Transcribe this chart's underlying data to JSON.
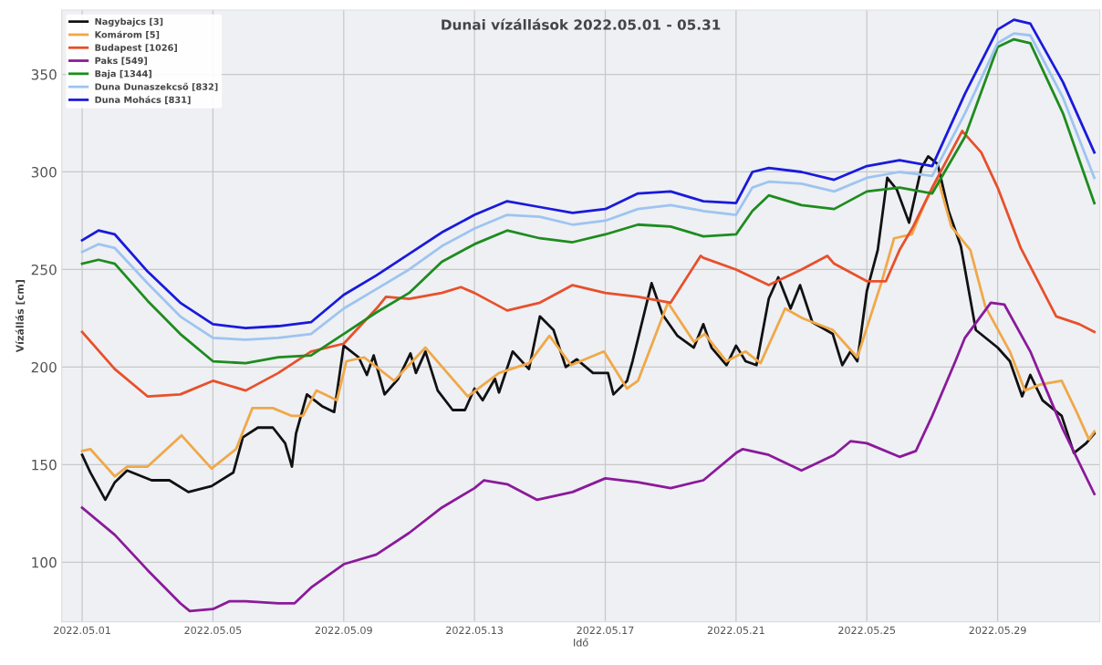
{
  "chart_data": {
    "type": "line",
    "title": "Dunai vízállások 2022.05.01 - 05.31",
    "xlabel": "Idő",
    "ylabel": "Vízállás [cm]",
    "xlim": [
      "2022-04-30T09:00",
      "2022-06-01T03:00"
    ],
    "xticks": [
      {
        "value": "2022-05-01",
        "label": "2022.05.01"
      },
      {
        "value": "2022-05-05",
        "label": "2022.05.05"
      },
      {
        "value": "2022-05-09",
        "label": "2022.05.09"
      },
      {
        "value": "2022-05-13",
        "label": "2022.05.13"
      },
      {
        "value": "2022-05-17",
        "label": "2022.05.17"
      },
      {
        "value": "2022-05-21",
        "label": "2022.05.21"
      },
      {
        "value": "2022-05-25",
        "label": "2022.05.25"
      },
      {
        "value": "2022-05-29",
        "label": "2022.05.29"
      }
    ],
    "ylim": [
      69.5,
      383
    ],
    "yticks": [
      100,
      150,
      200,
      250,
      300,
      350
    ],
    "grid": true,
    "legend": "top left",
    "marker": "none",
    "line_style": "solid",
    "series": [
      {
        "name": "Nagybajcs [3]",
        "color": "#111111",
        "x": [
          "2022-05-01T00:00",
          "2022-05-01T06:00",
          "2022-05-01T17:00",
          "2022-05-02T00:00",
          "2022-05-02T09:00",
          "2022-05-03T03:00",
          "2022-05-03T16:00",
          "2022-05-04T06:00",
          "2022-05-04T23:00",
          "2022-05-05T15:00",
          "2022-05-05T22:00",
          "2022-05-06T09:00",
          "2022-05-06T20:00",
          "2022-05-07T05:00",
          "2022-05-07T10:00",
          "2022-05-07T13:00",
          "2022-05-07T21:00",
          "2022-05-08T08:00",
          "2022-05-08T17:00",
          "2022-05-09T00:00",
          "2022-05-09T11:00",
          "2022-05-09T17:00",
          "2022-05-09T22:00",
          "2022-05-10T06:00",
          "2022-05-10T16:00",
          "2022-05-11T01:00",
          "2022-05-11T05:00",
          "2022-05-11T12:00",
          "2022-05-11T21:00",
          "2022-05-12T08:00",
          "2022-05-12T17:00",
          "2022-05-13T00:00",
          "2022-05-13T06:00",
          "2022-05-13T15:00",
          "2022-05-13T18:00",
          "2022-05-14T04:00",
          "2022-05-14T16:00",
          "2022-05-15T00:00",
          "2022-05-15T10:00",
          "2022-05-15T19:00",
          "2022-05-16T03:00",
          "2022-05-16T15:00",
          "2022-05-17T02:00",
          "2022-05-17T06:00",
          "2022-05-17T16:00",
          "2022-05-17T20:00",
          "2022-05-18T10:00",
          "2022-05-18T18:00",
          "2022-05-19T05:00",
          "2022-05-19T17:00",
          "2022-05-20T00:00",
          "2022-05-20T06:00",
          "2022-05-20T17:00",
          "2022-05-21T00:00",
          "2022-05-21T07:00",
          "2022-05-21T15:00",
          "2022-05-22T00:00",
          "2022-05-22T07:00",
          "2022-05-22T16:00",
          "2022-05-22T23:00",
          "2022-05-23T08:00",
          "2022-05-23T23:00",
          "2022-05-24T06:00",
          "2022-05-24T12:00",
          "2022-05-24T17:00",
          "2022-05-25T00:00",
          "2022-05-25T08:00",
          "2022-05-25T15:00",
          "2022-05-25T22:00",
          "2022-05-26T07:00",
          "2022-05-26T16:00",
          "2022-05-26T21:00",
          "2022-05-27T04:00",
          "2022-05-27T12:00",
          "2022-05-27T21:00",
          "2022-05-28T08:00",
          "2022-05-29T00:00",
          "2022-05-29T09:00",
          "2022-05-29T18:00",
          "2022-05-30T00:00",
          "2022-05-30T09:00",
          "2022-05-30T23:00",
          "2022-05-31T08:00",
          "2022-05-31T17:00",
          "2022-05-31T23:00"
        ],
        "values": [
          155,
          146,
          132,
          141,
          147,
          142,
          142,
          136,
          139,
          146,
          164,
          169,
          169,
          161,
          149,
          166,
          186,
          180,
          177,
          211,
          205,
          196,
          206,
          186,
          194,
          207,
          197,
          208,
          188,
          178,
          178,
          189,
          183,
          194,
          187,
          208,
          199,
          226,
          219,
          200,
          204,
          197,
          197,
          186,
          193,
          203,
          243,
          227,
          216,
          210,
          222,
          210,
          201,
          211,
          203,
          201,
          235,
          246,
          230,
          242,
          223,
          217,
          201,
          208,
          203,
          239,
          260,
          297,
          291,
          274,
          302,
          308,
          304,
          280,
          262,
          219,
          210,
          203,
          185,
          196,
          183,
          175,
          156,
          161,
          166
        ]
      },
      {
        "name": "Komárom [5]",
        "color": "#f0a848",
        "x": [
          "2022-05-01T00:00",
          "2022-05-01T06:00",
          "2022-05-02T00:00",
          "2022-05-02T09:00",
          "2022-05-03T00:00",
          "2022-05-04T01:00",
          "2022-05-04T23:00",
          "2022-05-05T17:00",
          "2022-05-06T05:00",
          "2022-05-06T20:00",
          "2022-05-07T10:00",
          "2022-05-07T18:00",
          "2022-05-08T04:00",
          "2022-05-08T19:00",
          "2022-05-09T02:00",
          "2022-05-09T15:00",
          "2022-05-10T13:00",
          "2022-05-11T12:00",
          "2022-05-12T19:00",
          "2022-05-13T18:00",
          "2022-05-14T16:00",
          "2022-05-15T07:00",
          "2022-05-15T23:00",
          "2022-05-16T23:00",
          "2022-05-17T16:00",
          "2022-05-18T00:00",
          "2022-05-18T22:00",
          "2022-05-19T17:00",
          "2022-05-20T01:00",
          "2022-05-20T17:00",
          "2022-05-21T07:00",
          "2022-05-21T18:00",
          "2022-05-22T12:00",
          "2022-05-23T01:00",
          "2022-05-23T23:00",
          "2022-05-24T17:00",
          "2022-05-25T11:00",
          "2022-05-25T20:00",
          "2022-05-26T09:00",
          "2022-05-26T18:00",
          "2022-05-27T04:00",
          "2022-05-27T14:00",
          "2022-05-28T04:00",
          "2022-05-28T15:00",
          "2022-05-29T09:00",
          "2022-05-29T20:00",
          "2022-05-30T07:00",
          "2022-05-30T23:00",
          "2022-05-31T10:00",
          "2022-05-31T19:00",
          "2022-05-31T23:00"
        ],
        "values": [
          157,
          158,
          144,
          149,
          149,
          165,
          148,
          158,
          179,
          179,
          175,
          175,
          188,
          183,
          203,
          205,
          193,
          210,
          185,
          197,
          202,
          216,
          201,
          208,
          189,
          193,
          233,
          213,
          217,
          203,
          208,
          202,
          230,
          225,
          219,
          205,
          244,
          266,
          268,
          283,
          297,
          272,
          260,
          231,
          208,
          188,
          191,
          193,
          177,
          163,
          167
        ]
      },
      {
        "name": "Budapest [1026]",
        "color": "#e8502a",
        "x": [
          "2022-05-01",
          "2022-05-02",
          "2022-05-03",
          "2022-05-04",
          "2022-05-05",
          "2022-05-06",
          "2022-05-07",
          "2022-05-08",
          "2022-05-09",
          "2022-05-10",
          "2022-05-10T07:00",
          "2022-05-11",
          "2022-05-12",
          "2022-05-12T14:00",
          "2022-05-13",
          "2022-05-14",
          "2022-05-15",
          "2022-05-16",
          "2022-05-17",
          "2022-05-18",
          "2022-05-19",
          "2022-05-19T22:00",
          "2022-05-20",
          "2022-05-21",
          "2022-05-22",
          "2022-05-23",
          "2022-05-23T19:00",
          "2022-05-24",
          "2022-05-25",
          "2022-05-25T14:00",
          "2022-05-26",
          "2022-05-26T10:00",
          "2022-05-27",
          "2022-05-27T22:00",
          "2022-05-28T12:00",
          "2022-05-29",
          "2022-05-29T17:00",
          "2022-05-30T19:00",
          "2022-05-31T12:00",
          "2022-05-31T23:00"
        ],
        "values": [
          218,
          199,
          185,
          186,
          193,
          188,
          197,
          208,
          212,
          230,
          236,
          235,
          238,
          241,
          238,
          229,
          233,
          242,
          238,
          236,
          233,
          257,
          256,
          250,
          242,
          250,
          257,
          253,
          244,
          244,
          260,
          272,
          292,
          321,
          310,
          292,
          261,
          226,
          222,
          218
        ]
      },
      {
        "name": "Paks [549]",
        "color": "#8b1a9a",
        "x": [
          "2022-05-01",
          "2022-05-02",
          "2022-05-03",
          "2022-05-04",
          "2022-05-04T07:00",
          "2022-05-05",
          "2022-05-05T12:00",
          "2022-05-06",
          "2022-05-07",
          "2022-05-07T12:00",
          "2022-05-08",
          "2022-05-09",
          "2022-05-10",
          "2022-05-11",
          "2022-05-12",
          "2022-05-13",
          "2022-05-13T07:00",
          "2022-05-14",
          "2022-05-14T22:00",
          "2022-05-16",
          "2022-05-17",
          "2022-05-18",
          "2022-05-19",
          "2022-05-20",
          "2022-05-21",
          "2022-05-21T05:00",
          "2022-05-22",
          "2022-05-23",
          "2022-05-24",
          "2022-05-24T12:00",
          "2022-05-25",
          "2022-05-26",
          "2022-05-26T12:00",
          "2022-05-27",
          "2022-05-27T17:00",
          "2022-05-28",
          "2022-05-28T19:00",
          "2022-05-29T05:00",
          "2022-05-30",
          "2022-05-30T12:00",
          "2022-05-31",
          "2022-05-31T23:00"
        ],
        "values": [
          128,
          114,
          96,
          79,
          75,
          76,
          80,
          80,
          79,
          79,
          87,
          99,
          104,
          115,
          128,
          138,
          142,
          140,
          132,
          136,
          143,
          141,
          138,
          142,
          156,
          158,
          155,
          147,
          155,
          162,
          161,
          154,
          157,
          175,
          203,
          215,
          233,
          232,
          208,
          188,
          168,
          135
        ]
      },
      {
        "name": "Baja [1344]",
        "color": "#1e8c1e",
        "x": [
          "2022-05-01",
          "2022-05-01T12:00",
          "2022-05-02",
          "2022-05-03",
          "2022-05-04",
          "2022-05-05",
          "2022-05-06",
          "2022-05-07",
          "2022-05-08",
          "2022-05-09",
          "2022-05-10",
          "2022-05-11",
          "2022-05-12",
          "2022-05-13",
          "2022-05-14",
          "2022-05-15",
          "2022-05-16",
          "2022-05-17",
          "2022-05-18",
          "2022-05-19",
          "2022-05-20",
          "2022-05-21",
          "2022-05-21T12:00",
          "2022-05-22",
          "2022-05-23",
          "2022-05-24",
          "2022-05-25",
          "2022-05-26",
          "2022-05-27",
          "2022-05-28",
          "2022-05-29",
          "2022-05-29T12:00",
          "2022-05-30",
          "2022-05-31",
          "2022-05-31T23:00"
        ],
        "values": [
          253,
          255,
          253,
          234,
          217,
          203,
          202,
          205,
          206,
          217,
          228,
          238,
          254,
          263,
          270,
          266,
          264,
          268,
          273,
          272,
          267,
          268,
          280,
          288,
          283,
          281,
          290,
          292,
          289,
          318,
          364,
          368,
          366,
          330,
          284
        ]
      },
      {
        "name": "Duna Dunaszekcső [832]",
        "color": "#9ec4f0",
        "x": [
          "2022-05-01",
          "2022-05-01T12:00",
          "2022-05-02",
          "2022-05-03",
          "2022-05-04",
          "2022-05-05",
          "2022-05-06",
          "2022-05-07",
          "2022-05-08",
          "2022-05-09",
          "2022-05-10",
          "2022-05-11",
          "2022-05-12",
          "2022-05-13",
          "2022-05-14",
          "2022-05-15",
          "2022-05-16",
          "2022-05-17",
          "2022-05-18",
          "2022-05-19",
          "2022-05-20",
          "2022-05-21",
          "2022-05-21T12:00",
          "2022-05-22",
          "2022-05-23",
          "2022-05-24",
          "2022-05-25",
          "2022-05-26",
          "2022-05-27",
          "2022-05-28",
          "2022-05-29",
          "2022-05-29T12:00",
          "2022-05-30",
          "2022-05-31",
          "2022-05-31T23:00"
        ],
        "values": [
          259,
          263,
          261,
          243,
          226,
          215,
          214,
          215,
          217,
          230,
          240,
          250,
          262,
          271,
          278,
          277,
          273,
          275,
          281,
          283,
          280,
          278,
          292,
          295,
          294,
          290,
          297,
          300,
          298,
          330,
          366,
          371,
          370,
          338,
          297
        ]
      },
      {
        "name": "Duna Mohács [831]",
        "color": "#1a1adc",
        "x": [
          "2022-05-01",
          "2022-05-01T12:00",
          "2022-05-02",
          "2022-05-03",
          "2022-05-04",
          "2022-05-05",
          "2022-05-06",
          "2022-05-07",
          "2022-05-08",
          "2022-05-09",
          "2022-05-10",
          "2022-05-11",
          "2022-05-12",
          "2022-05-13",
          "2022-05-14",
          "2022-05-15",
          "2022-05-16",
          "2022-05-17",
          "2022-05-18",
          "2022-05-19",
          "2022-05-20",
          "2022-05-21",
          "2022-05-21T12:00",
          "2022-05-22",
          "2022-05-23",
          "2022-05-24",
          "2022-05-25",
          "2022-05-26",
          "2022-05-27",
          "2022-05-28",
          "2022-05-29",
          "2022-05-29T12:00",
          "2022-05-30",
          "2022-05-31",
          "2022-05-31T23:00"
        ],
        "values": [
          265,
          270,
          268,
          249,
          233,
          222,
          220,
          221,
          223,
          237,
          247,
          258,
          269,
          278,
          285,
          282,
          279,
          281,
          289,
          290,
          285,
          284,
          300,
          302,
          300,
          296,
          303,
          306,
          303,
          340,
          373,
          378,
          376,
          346,
          310
        ]
      }
    ]
  }
}
